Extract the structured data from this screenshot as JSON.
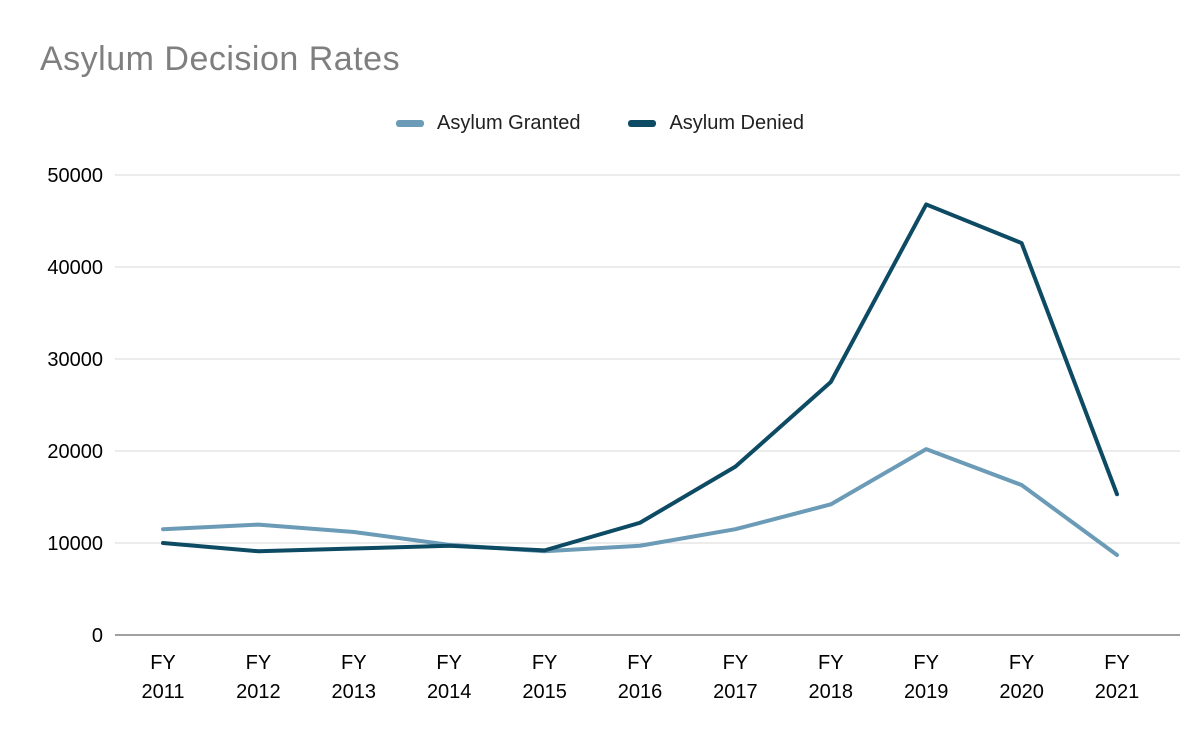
{
  "page": {
    "title": "Asylum Decision Rates"
  },
  "chart_data": {
    "type": "line",
    "title": "Asylum Decision Rates",
    "xlabel": "",
    "ylabel": "",
    "ylim": [
      0,
      50000
    ],
    "yticks": [
      0,
      10000,
      20000,
      30000,
      40000,
      50000
    ],
    "grid": true,
    "legend_position": "top",
    "categories": [
      "FY 2011",
      "FY 2012",
      "FY 2013",
      "FY 2014",
      "FY 2015",
      "FY 2016",
      "FY 2017",
      "FY 2018",
      "FY 2019",
      "FY 2020",
      "FY 2021"
    ],
    "series": [
      {
        "name": "Asylum Granted",
        "color": "#6b9bb7",
        "values": [
          11500,
          12000,
          11200,
          9800,
          9100,
          9700,
          11500,
          14200,
          20200,
          16300,
          8700
        ]
      },
      {
        "name": "Asylum Denied",
        "color": "#0d4a63",
        "values": [
          10000,
          9100,
          9400,
          9700,
          9200,
          12200,
          18300,
          27500,
          46800,
          42600,
          15300
        ]
      }
    ],
    "title_color": "#7f7f7f",
    "gridline_color": "#d9d9d9",
    "axis_line_color": "#424242"
  }
}
